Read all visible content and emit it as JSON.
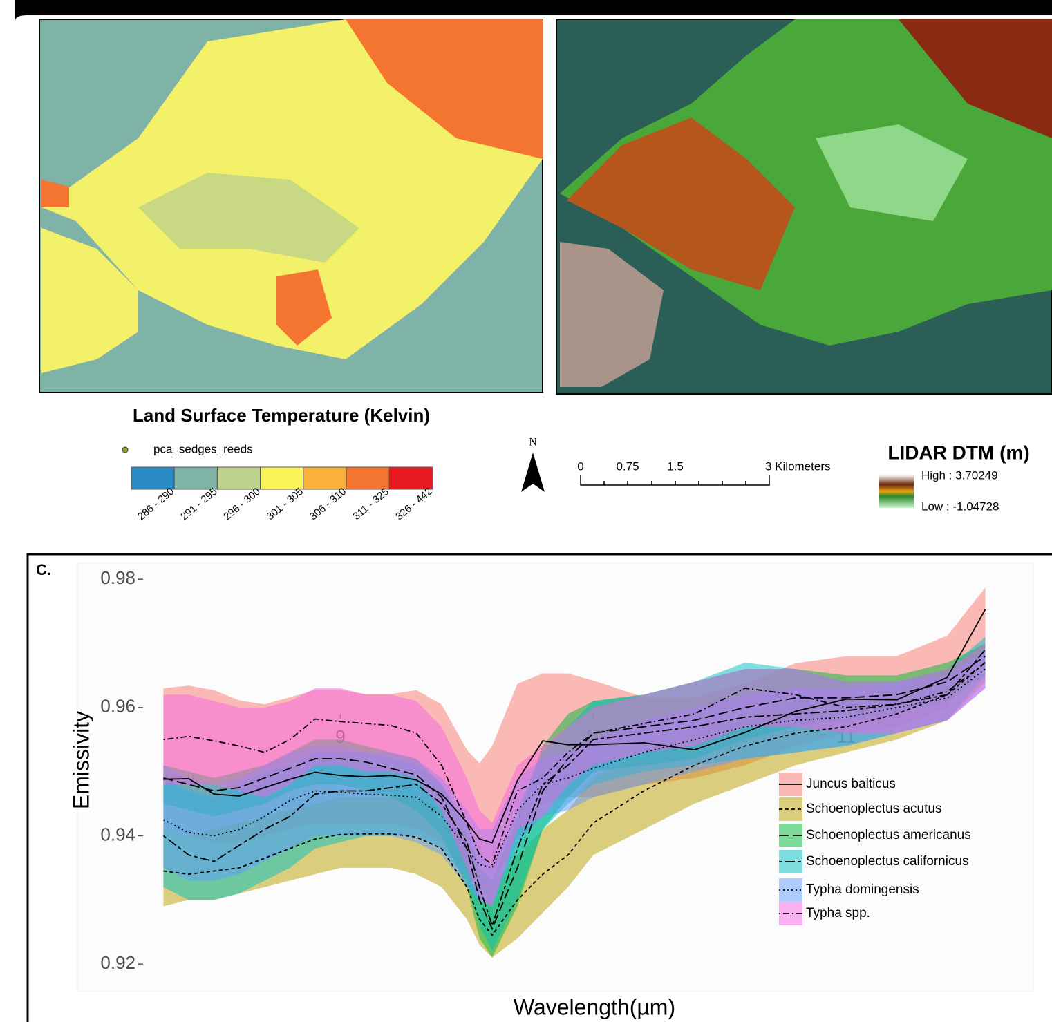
{
  "maps": {
    "lst": {
      "title": "Land Surface Temperature (Kelvin)",
      "points_label": "pca_sedges_reeds",
      "classes": [
        {
          "label": "286 - 290",
          "color": "#2a8bc3"
        },
        {
          "label": "291 - 295",
          "color": "#7fb3a8"
        },
        {
          "label": "296 - 300",
          "color": "#bdd28a"
        },
        {
          "label": "301 - 305",
          "color": "#fbf55a"
        },
        {
          "label": "306 - 310",
          "color": "#fbb03b"
        },
        {
          "label": "311 - 325",
          "color": "#f47530"
        },
        {
          "label": "326 - 442",
          "color": "#e8191f"
        }
      ]
    },
    "north": "N",
    "scale_bar": [
      "0",
      "0.75",
      "1.5",
      "3 Kilometers"
    ],
    "dtm": {
      "title": "LIDAR DTM (m)",
      "high": "High : 3.70249",
      "low": "Low : -1.04728"
    }
  },
  "panel_label": "C.",
  "chart_data": {
    "type": "line-ribbon",
    "xlabel": "Wavelength(µm)",
    "ylabel": "Emissivity",
    "x": [
      8.3,
      8.4,
      8.5,
      8.6,
      8.7,
      8.8,
      8.9,
      9.0,
      9.1,
      9.2,
      9.3,
      9.4,
      9.5,
      9.55,
      9.6,
      9.7,
      9.8,
      9.9,
      10.0,
      10.2,
      10.4,
      10.6,
      10.8,
      11.0,
      11.2,
      11.4,
      11.55
    ],
    "xlim": [
      7.96,
      11.74
    ],
    "xticks": [
      9,
      10,
      11
    ],
    "ylim": [
      0.9157,
      0.9825
    ],
    "yticks": [
      0.92,
      0.94,
      0.96,
      0.98
    ],
    "series": [
      {
        "name": "Juncus balticus",
        "color": "#f8766d",
        "linestyle": "solid",
        "values": [
          0.9488,
          0.9489,
          0.9465,
          0.9462,
          0.9475,
          0.9488,
          0.9499,
          0.9494,
          0.9492,
          0.9494,
          0.9487,
          0.9465,
          0.9421,
          0.9395,
          0.9389,
          0.9486,
          0.9548,
          0.9542,
          0.9542,
          0.9545,
          0.9534,
          0.9561,
          0.9594,
          0.9613,
          0.9612,
          0.9647,
          0.9753
        ],
        "upper": [
          0.963,
          0.9634,
          0.9627,
          0.9611,
          0.9605,
          0.9616,
          0.9627,
          0.9627,
          0.9621,
          0.9621,
          0.9627,
          0.9605,
          0.9534,
          0.9513,
          0.954,
          0.9637,
          0.9653,
          0.9653,
          0.9642,
          0.9616,
          0.9616,
          0.9637,
          0.9669,
          0.968,
          0.968,
          0.9712,
          0.9787
        ],
        "lower": [
          0.941,
          0.94,
          0.939,
          0.939,
          0.94,
          0.941,
          0.942,
          0.942,
          0.942,
          0.942,
          0.941,
          0.939,
          0.934,
          0.932,
          0.932,
          0.94,
          0.945,
          0.946,
          0.946,
          0.948,
          0.949,
          0.951,
          0.954,
          0.956,
          0.957,
          0.96,
          0.97
        ]
      },
      {
        "name": "Schoenoplectus acutus",
        "color": "#b79f00",
        "linestyle": "dashed",
        "values": [
          0.9345,
          0.934,
          0.9345,
          0.935,
          0.9365,
          0.938,
          0.9395,
          0.9402,
          0.9403,
          0.9403,
          0.9398,
          0.938,
          0.932,
          0.927,
          0.9245,
          0.93,
          0.934,
          0.937,
          0.942,
          0.947,
          0.951,
          0.954,
          0.956,
          0.957,
          0.959,
          0.962,
          0.967
        ],
        "upper": [
          0.941,
          0.94,
          0.941,
          0.942,
          0.943,
          0.944,
          0.945,
          0.946,
          0.946,
          0.946,
          0.946,
          0.944,
          0.939,
          0.934,
          0.932,
          0.937,
          0.941,
          0.944,
          0.949,
          0.953,
          0.956,
          0.959,
          0.961,
          0.962,
          0.963,
          0.966,
          0.97
        ],
        "lower": [
          0.929,
          0.93,
          0.93,
          0.931,
          0.932,
          0.933,
          0.934,
          0.935,
          0.935,
          0.935,
          0.934,
          0.932,
          0.927,
          0.923,
          0.921,
          0.924,
          0.928,
          0.932,
          0.937,
          0.941,
          0.945,
          0.948,
          0.951,
          0.953,
          0.955,
          0.958,
          0.964
        ]
      },
      {
        "name": "Schoenoplectus americanus",
        "color": "#00ba38",
        "linestyle": "longdash",
        "values": [
          0.949,
          0.948,
          0.947,
          0.9475,
          0.949,
          0.9505,
          0.952,
          0.952,
          0.9515,
          0.9505,
          0.9495,
          0.946,
          0.938,
          0.93,
          0.9255,
          0.935,
          0.947,
          0.952,
          0.956,
          0.957,
          0.958,
          0.96,
          0.9615,
          0.9615,
          0.962,
          0.964,
          0.968
        ],
        "upper": [
          0.951,
          0.95,
          0.949,
          0.95,
          0.951,
          0.953,
          0.955,
          0.955,
          0.954,
          0.953,
          0.952,
          0.948,
          0.941,
          0.935,
          0.933,
          0.943,
          0.954,
          0.959,
          0.961,
          0.962,
          0.964,
          0.966,
          0.966,
          0.965,
          0.965,
          0.967,
          0.97
        ],
        "lower": [
          0.945,
          0.944,
          0.943,
          0.944,
          0.945,
          0.947,
          0.948,
          0.948,
          0.947,
          0.946,
          0.944,
          0.94,
          0.932,
          0.924,
          0.921,
          0.929,
          0.941,
          0.946,
          0.95,
          0.951,
          0.952,
          0.955,
          0.957,
          0.958,
          0.959,
          0.961,
          0.965
        ]
      },
      {
        "name": "Schoenoplectus californicus",
        "color": "#00bfc4",
        "linestyle": "twodash",
        "values": [
          0.94,
          0.937,
          0.936,
          0.9385,
          0.941,
          0.943,
          0.9465,
          0.947,
          0.947,
          0.9475,
          0.948,
          0.945,
          0.939,
          0.932,
          0.926,
          0.938,
          0.948,
          0.951,
          0.955,
          0.956,
          0.957,
          0.9585,
          0.959,
          0.9595,
          0.9605,
          0.962,
          0.969
        ],
        "upper": [
          0.949,
          0.947,
          0.946,
          0.948,
          0.95,
          0.951,
          0.953,
          0.953,
          0.953,
          0.952,
          0.951,
          0.948,
          0.942,
          0.937,
          0.935,
          0.944,
          0.953,
          0.957,
          0.961,
          0.962,
          0.964,
          0.967,
          0.966,
          0.964,
          0.964,
          0.966,
          0.971
        ],
        "lower": [
          0.932,
          0.93,
          0.93,
          0.931,
          0.933,
          0.935,
          0.938,
          0.939,
          0.94,
          0.94,
          0.94,
          0.938,
          0.933,
          0.926,
          0.922,
          0.93,
          0.941,
          0.945,
          0.948,
          0.95,
          0.951,
          0.952,
          0.953,
          0.954,
          0.956,
          0.958,
          0.965
        ]
      },
      {
        "name": "Typha domingensis",
        "color": "#619cff",
        "linestyle": "dotted",
        "values": [
          0.9425,
          0.9405,
          0.94,
          0.941,
          0.943,
          0.9455,
          0.947,
          0.9468,
          0.9465,
          0.9463,
          0.946,
          0.943,
          0.938,
          0.9355,
          0.935,
          0.944,
          0.948,
          0.949,
          0.9505,
          0.953,
          0.955,
          0.957,
          0.958,
          0.9585,
          0.96,
          0.9615,
          0.966
        ],
        "upper": [
          0.951,
          0.949,
          0.948,
          0.949,
          0.951,
          0.953,
          0.954,
          0.954,
          0.953,
          0.953,
          0.952,
          0.949,
          0.944,
          0.941,
          0.941,
          0.949,
          0.952,
          0.953,
          0.955,
          0.958,
          0.96,
          0.962,
          0.963,
          0.963,
          0.964,
          0.965,
          0.969
        ],
        "lower": [
          0.935,
          0.933,
          0.933,
          0.934,
          0.936,
          0.938,
          0.94,
          0.94,
          0.94,
          0.94,
          0.939,
          0.937,
          0.932,
          0.93,
          0.929,
          0.939,
          0.943,
          0.944,
          0.946,
          0.948,
          0.95,
          0.952,
          0.953,
          0.954,
          0.956,
          0.958,
          0.963
        ]
      },
      {
        "name": "Typha spp.",
        "color": "#f564e3",
        "linestyle": "dotdash",
        "values": [
          0.955,
          0.9555,
          0.9548,
          0.954,
          0.953,
          0.955,
          0.9582,
          0.9578,
          0.9575,
          0.9572,
          0.956,
          0.951,
          0.942,
          0.937,
          0.9355,
          0.947,
          0.949,
          0.953,
          0.956,
          0.9575,
          0.959,
          0.963,
          0.962,
          0.96,
          0.9605,
          0.9625,
          0.967
        ],
        "upper": [
          0.962,
          0.962,
          0.961,
          0.96,
          0.96,
          0.961,
          0.963,
          0.963,
          0.962,
          0.962,
          0.961,
          0.957,
          0.949,
          0.944,
          0.942,
          0.951,
          0.954,
          0.957,
          0.96,
          0.962,
          0.964,
          0.966,
          0.966,
          0.964,
          0.964,
          0.966,
          0.97
        ],
        "lower": [
          0.948,
          0.948,
          0.948,
          0.947,
          0.946,
          0.948,
          0.951,
          0.951,
          0.95,
          0.95,
          0.949,
          0.944,
          0.935,
          0.93,
          0.929,
          0.941,
          0.943,
          0.948,
          0.951,
          0.953,
          0.954,
          0.957,
          0.957,
          0.956,
          0.956,
          0.958,
          0.963
        ]
      }
    ]
  }
}
